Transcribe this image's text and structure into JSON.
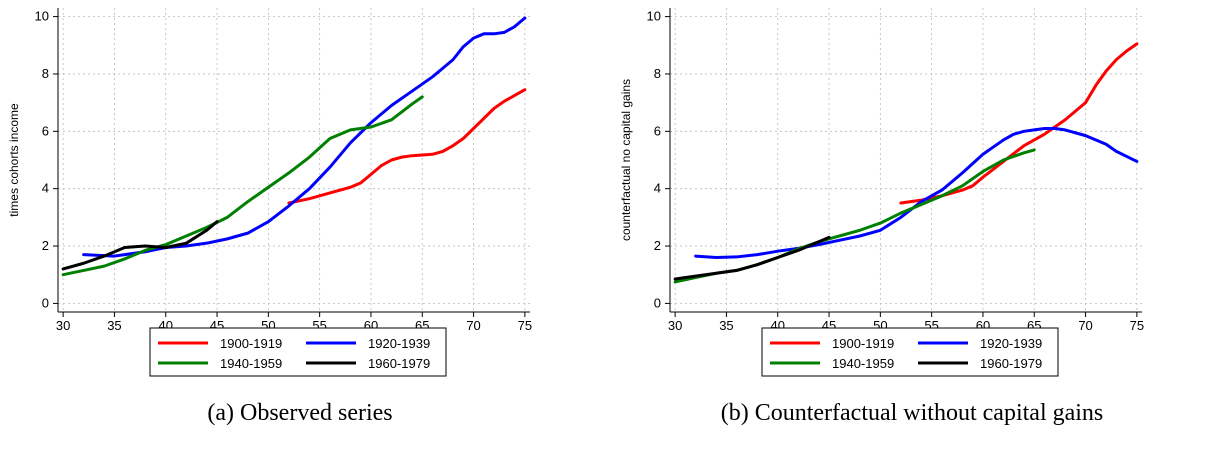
{
  "series_colors": {
    "1900-1919": "#ff0000",
    "1920-1939": "#0000ff",
    "1940-1959": "#008000",
    "1960-1979": "#000000"
  },
  "chart_data": [
    {
      "panel": "a",
      "type": "line",
      "caption": "(a) Observed series",
      "title": "",
      "xlabel": "",
      "ylabel": "times cohorts income",
      "xlim": [
        29.5,
        75.5
      ],
      "ylim": [
        -0.3,
        10.3
      ],
      "xticks": [
        30,
        35,
        40,
        45,
        50,
        55,
        60,
        65,
        70,
        75
      ],
      "yticks": [
        0,
        2,
        4,
        6,
        8,
        10
      ],
      "grid": true,
      "legend_position": "bottom",
      "series": [
        {
          "name": "1900-1919",
          "color": "#ff0000",
          "x": [
            52,
            54,
            56,
            58,
            59,
            60,
            61,
            62,
            63,
            64,
            66,
            67,
            68,
            69,
            70,
            71,
            72,
            73,
            74,
            75
          ],
          "y": [
            3.5,
            3.65,
            3.85,
            4.05,
            4.2,
            4.5,
            4.8,
            5.0,
            5.1,
            5.15,
            5.2,
            5.3,
            5.5,
            5.75,
            6.1,
            6.45,
            6.8,
            7.05,
            7.25,
            7.45
          ]
        },
        {
          "name": "1920-1939",
          "color": "#0000ff",
          "x": [
            32,
            35,
            38,
            40,
            42,
            44,
            46,
            48,
            50,
            52,
            54,
            56,
            58,
            60,
            62,
            64,
            66,
            67,
            68,
            69,
            70,
            71,
            72,
            73,
            74,
            75
          ],
          "y": [
            1.7,
            1.65,
            1.8,
            1.95,
            2.0,
            2.1,
            2.25,
            2.45,
            2.85,
            3.4,
            4.0,
            4.75,
            5.6,
            6.3,
            6.9,
            7.4,
            7.9,
            8.2,
            8.5,
            8.95,
            9.25,
            9.4,
            9.4,
            9.45,
            9.65,
            9.95
          ]
        },
        {
          "name": "1940-1959",
          "color": "#008000",
          "x": [
            30,
            32,
            34,
            36,
            38,
            40,
            42,
            44,
            46,
            48,
            50,
            52,
            54,
            56,
            58,
            60,
            62,
            64,
            65
          ],
          "y": [
            1.0,
            1.15,
            1.3,
            1.55,
            1.85,
            2.05,
            2.35,
            2.65,
            3.0,
            3.55,
            4.05,
            4.55,
            5.1,
            5.75,
            6.05,
            6.15,
            6.4,
            6.95,
            7.2
          ]
        },
        {
          "name": "1960-1979",
          "color": "#000000",
          "x": [
            30,
            32,
            34,
            36,
            38,
            40,
            42,
            44,
            45
          ],
          "y": [
            1.2,
            1.4,
            1.65,
            1.95,
            2.0,
            1.95,
            2.1,
            2.55,
            2.85
          ]
        }
      ]
    },
    {
      "panel": "b",
      "type": "line",
      "caption": "(b) Counterfactual without capital gains",
      "title": "",
      "xlabel": "",
      "ylabel": "counterfactual no capital gains",
      "xlim": [
        29.5,
        75.5
      ],
      "ylim": [
        -0.3,
        10.3
      ],
      "xticks": [
        30,
        35,
        40,
        45,
        50,
        55,
        60,
        65,
        70,
        75
      ],
      "yticks": [
        0,
        2,
        4,
        6,
        8,
        10
      ],
      "grid": true,
      "legend_position": "bottom",
      "series": [
        {
          "name": "1900-1919",
          "color": "#ff0000",
          "x": [
            52,
            54,
            56,
            58,
            59,
            60,
            62,
            64,
            66,
            68,
            70,
            71,
            72,
            73,
            74,
            75
          ],
          "y": [
            3.5,
            3.6,
            3.75,
            3.95,
            4.1,
            4.4,
            4.95,
            5.5,
            5.9,
            6.4,
            7.0,
            7.6,
            8.1,
            8.5,
            8.8,
            9.05
          ]
        },
        {
          "name": "1920-1939",
          "color": "#0000ff",
          "x": [
            32,
            34,
            36,
            38,
            40,
            42,
            44,
            46,
            48,
            50,
            52,
            54,
            56,
            58,
            60,
            62,
            63,
            64,
            65,
            66,
            67,
            68,
            70,
            72,
            73,
            75
          ],
          "y": [
            1.65,
            1.6,
            1.62,
            1.7,
            1.82,
            1.92,
            2.05,
            2.2,
            2.35,
            2.55,
            3.0,
            3.55,
            3.95,
            4.55,
            5.2,
            5.7,
            5.9,
            6.0,
            6.05,
            6.1,
            6.1,
            6.05,
            5.85,
            5.55,
            5.3,
            4.95
          ]
        },
        {
          "name": "1940-1959",
          "color": "#008000",
          "x": [
            30,
            32,
            34,
            36,
            38,
            40,
            42,
            44,
            46,
            48,
            50,
            52,
            54,
            56,
            58,
            60,
            62,
            64,
            65
          ],
          "y": [
            0.75,
            0.9,
            1.05,
            1.15,
            1.35,
            1.6,
            1.9,
            2.15,
            2.35,
            2.55,
            2.8,
            3.15,
            3.45,
            3.75,
            4.1,
            4.6,
            5.0,
            5.25,
            5.35
          ]
        },
        {
          "name": "1960-1979",
          "color": "#000000",
          "x": [
            30,
            32,
            34,
            36,
            38,
            40,
            42,
            44,
            45
          ],
          "y": [
            0.85,
            0.95,
            1.05,
            1.15,
            1.35,
            1.6,
            1.85,
            2.15,
            2.3
          ]
        }
      ]
    }
  ]
}
